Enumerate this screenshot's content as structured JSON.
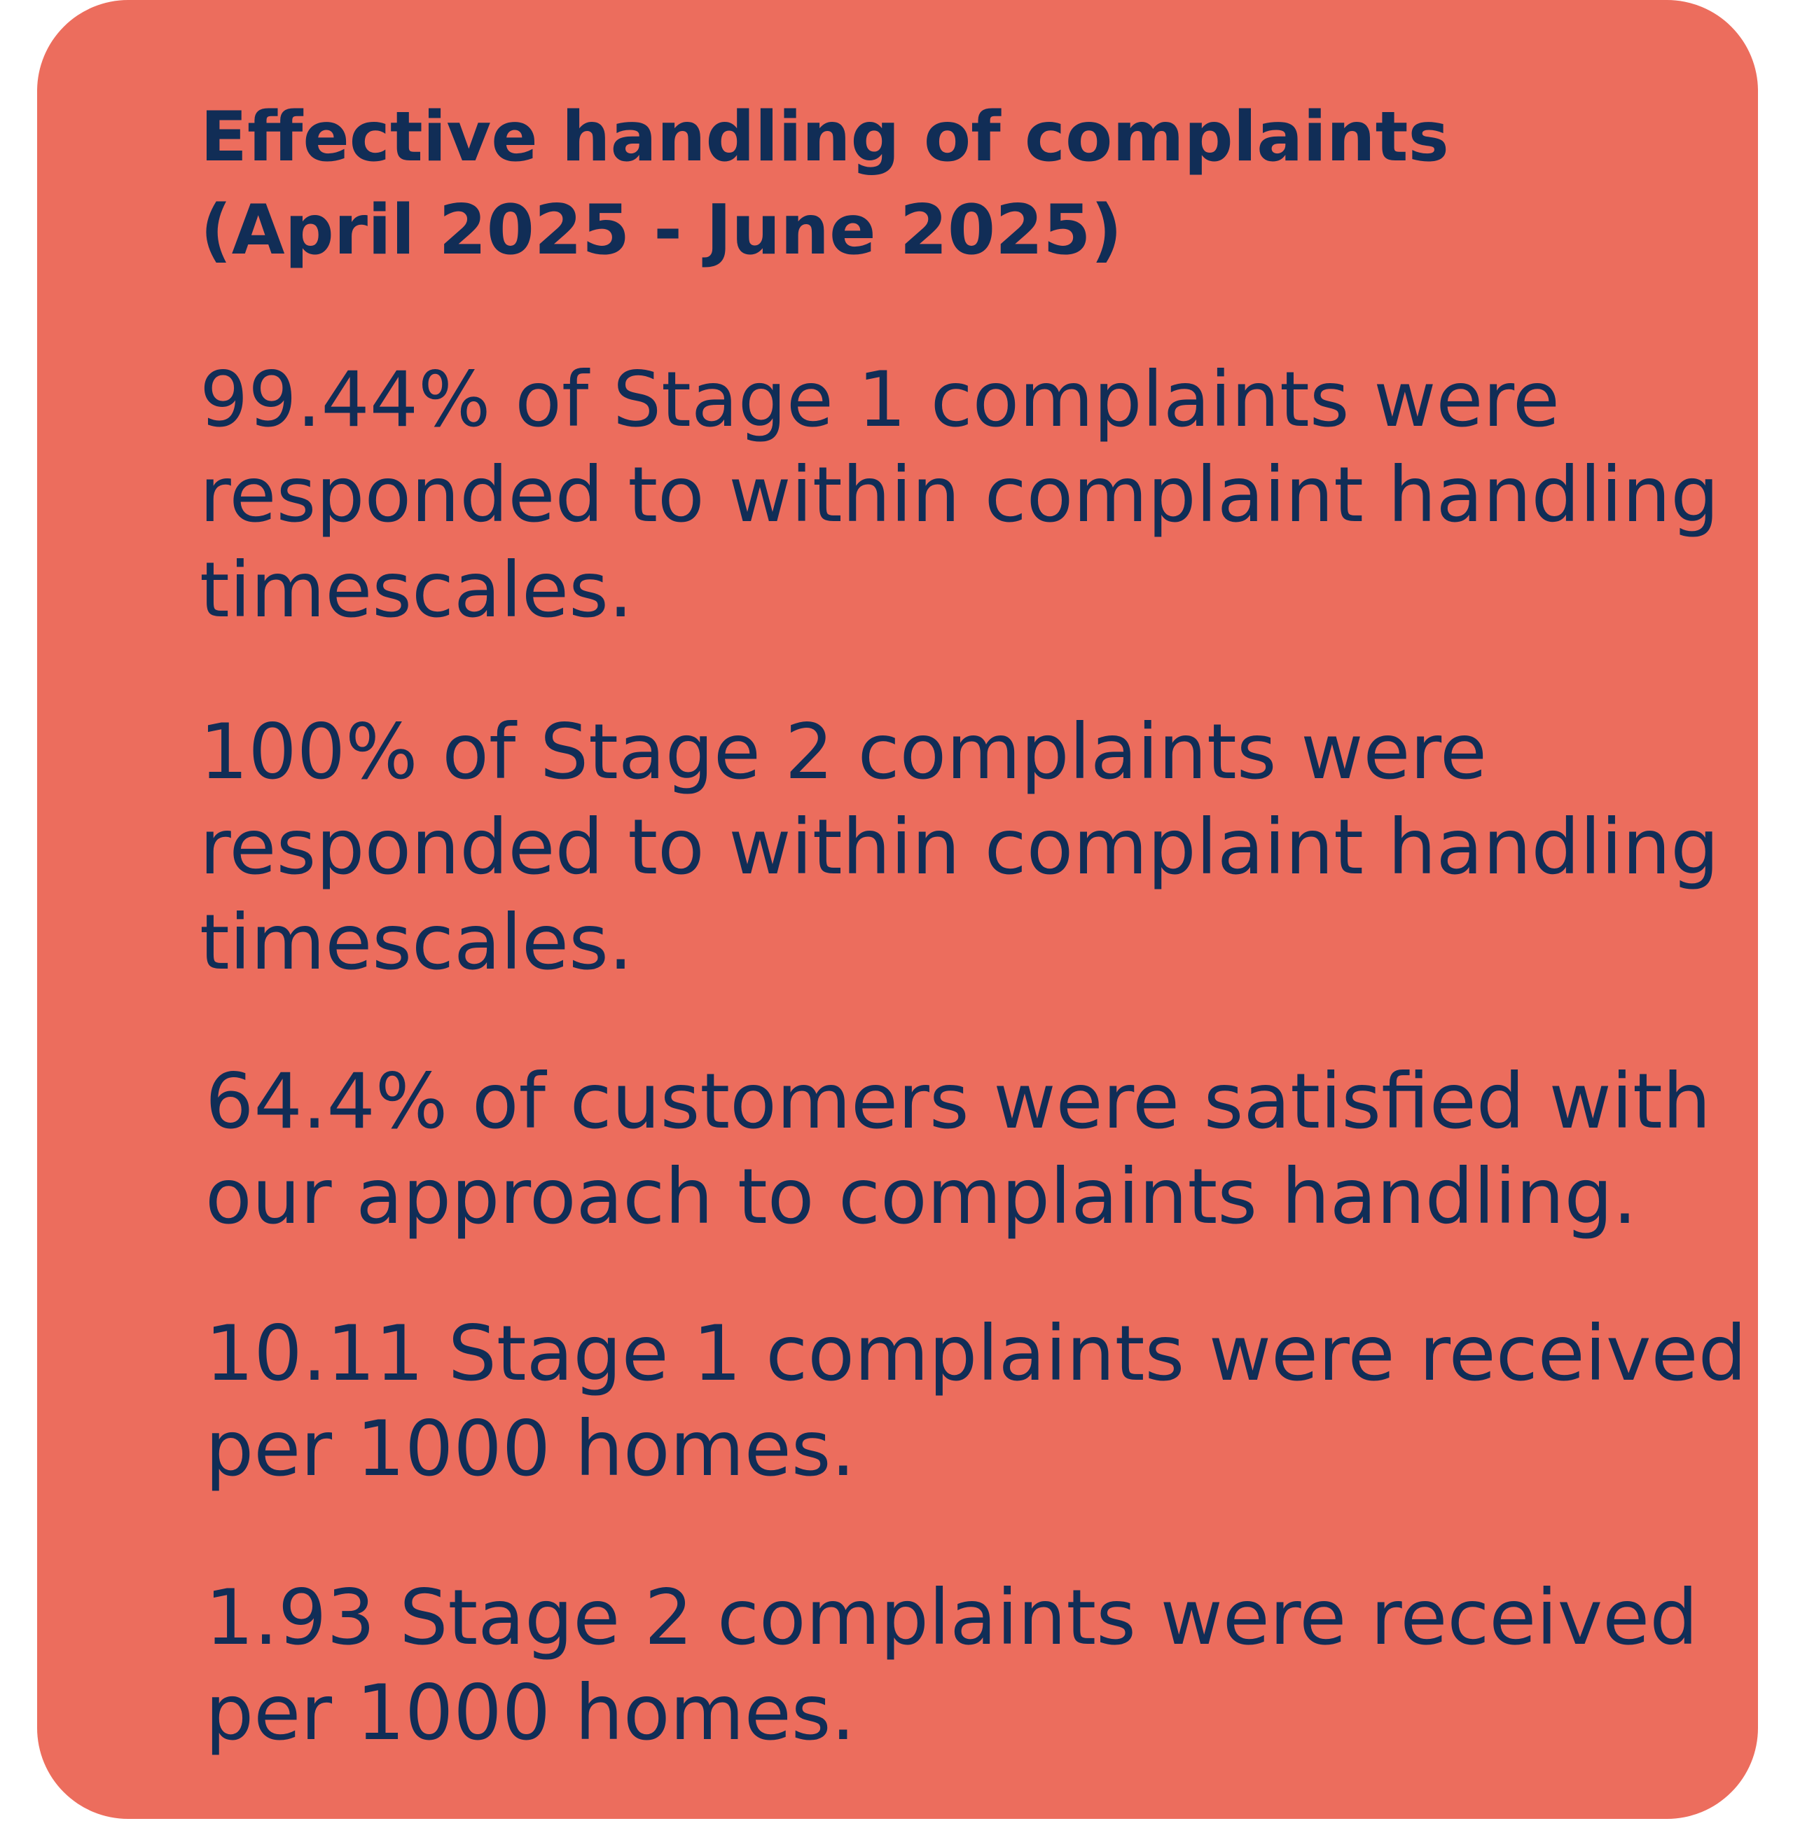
{
  "card": {
    "background_color": "#ec6d5d",
    "text_color": "#112d56",
    "title_lines": [
      "Effective handling of complaints",
      "(April 2025 - June 2025)"
    ],
    "stats": [
      {
        "lines": [
          "99.44% of Stage 1 complaints were",
          "responded to within complaint handling",
          "timescales."
        ]
      },
      {
        "lines": [
          "100% of Stage 2 complaints were",
          "responded to within complaint handling",
          "timescales."
        ]
      },
      {
        "lines": [
          "64.4% of customers were satisfied with",
          "our approach to complaints handling."
        ]
      },
      {
        "lines": [
          "10.11 Stage 1 complaints were received",
          "per 1000 homes."
        ]
      },
      {
        "lines": [
          "1.93 Stage 2 complaints were received",
          "per 1000 homes."
        ]
      }
    ]
  }
}
